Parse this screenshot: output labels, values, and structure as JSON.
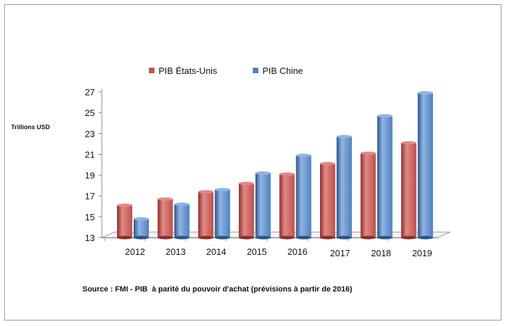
{
  "chart_data": {
    "type": "bar",
    "categories": [
      "2012",
      "2013",
      "2014",
      "2015",
      "2016",
      "2017",
      "2018",
      "2019"
    ],
    "series": [
      {
        "name": "PIB États-Unis",
        "values": [
          16.1,
          16.7,
          17.4,
          18.2,
          19.1,
          20.1,
          21.1,
          22.1
        ]
      },
      {
        "name": "PIB Chine",
        "values": [
          14.8,
          16.2,
          17.6,
          19.2,
          20.9,
          22.7,
          24.7,
          26.9
        ]
      }
    ],
    "ylabel": "Trillions USD",
    "yticks": [
      13,
      15,
      17,
      19,
      21,
      23,
      25,
      27
    ],
    "ylim": [
      13,
      27.8
    ],
    "legend_position": "top",
    "grid": false,
    "colors": {
      "PIB États-Unis": {
        "front": "#c0504d",
        "dark": "#8e2d2a",
        "light": "#e08a86"
      },
      "PIB Chine": {
        "front": "#4f81bd",
        "dark": "#2a5586",
        "light": "#8fb4e3"
      }
    },
    "source_note": "Source : FMI - PIB  à parité du pouvoir d'achat (prévisions à partir de 2016)"
  }
}
